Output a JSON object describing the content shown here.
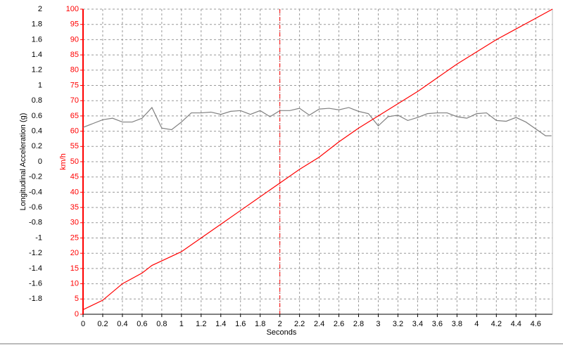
{
  "chart_data": {
    "type": "line",
    "x_label": "Seconds",
    "y_label": "Longitudinal Acceleration (g)",
    "y2_label": "km/h",
    "xlim": [
      0,
      4.77
    ],
    "xticks": [
      0,
      0.2,
      0.4,
      0.6,
      0.8,
      1,
      1.2,
      1.4,
      1.6,
      1.8,
      2,
      2.2,
      2.4,
      2.6,
      2.8,
      3,
      3.2,
      3.4,
      3.6,
      3.8,
      4,
      4.2,
      4.4,
      4.6
    ],
    "ylim": [
      -2,
      2
    ],
    "yticks": [
      -1.8,
      -1.6,
      -1.4,
      -1.2,
      -1,
      -0.8,
      -0.6,
      -0.4,
      -0.2,
      0,
      0.2,
      0.4,
      0.6,
      0.8,
      1,
      1.2,
      1.4,
      1.6,
      1.8,
      2
    ],
    "y2lim": [
      0,
      100
    ],
    "y2ticks": [
      0,
      5,
      10,
      15,
      20,
      25,
      30,
      35,
      40,
      45,
      50,
      55,
      60,
      65,
      70,
      75,
      80,
      85,
      90,
      95,
      100
    ],
    "grid": true,
    "cursor_x": 2,
    "series": [
      {
        "color": "#808080",
        "axis": "y",
        "x": [
          0,
          0.1,
          0.2,
          0.3,
          0.4,
          0.5,
          0.6,
          0.7,
          0.8,
          0.9,
          1,
          1.1,
          1.2,
          1.3,
          1.4,
          1.5,
          1.6,
          1.7,
          1.8,
          1.9,
          2,
          2.1,
          2.2,
          2.3,
          2.4,
          2.5,
          2.6,
          2.7,
          2.8,
          2.9,
          3,
          3.1,
          3.2,
          3.3,
          3.4,
          3.5,
          3.6,
          3.7,
          3.8,
          3.9,
          4,
          4.1,
          4.2,
          4.3,
          4.4,
          4.5,
          4.6,
          4.7,
          4.76
        ],
        "values": [
          0.45,
          0.5,
          0.55,
          0.57,
          0.52,
          0.52,
          0.57,
          0.71,
          0.44,
          0.42,
          0.52,
          0.64,
          0.64,
          0.65,
          0.62,
          0.66,
          0.67,
          0.62,
          0.67,
          0.59,
          0.67,
          0.67,
          0.7,
          0.61,
          0.69,
          0.7,
          0.68,
          0.71,
          0.66,
          0.63,
          0.47,
          0.59,
          0.61,
          0.54,
          0.58,
          0.63,
          0.64,
          0.64,
          0.59,
          0.57,
          0.63,
          0.64,
          0.54,
          0.53,
          0.58,
          0.52,
          0.43,
          0.34,
          0.34
        ]
      },
      {
        "color": "#ff0000",
        "axis": "y2",
        "x": [
          0,
          0.2,
          0.4,
          0.6,
          0.7,
          0.8,
          1,
          1.2,
          1.4,
          1.6,
          1.8,
          2,
          2.2,
          2.4,
          2.6,
          2.8,
          3,
          3.2,
          3.4,
          3.6,
          3.8,
          4,
          4.2,
          4.4,
          4.6,
          4.77
        ],
        "values": [
          1.5,
          4.6,
          10,
          13.5,
          16,
          17.5,
          20.5,
          25,
          29.5,
          34,
          38.5,
          43,
          47.5,
          51.5,
          56.5,
          61,
          65,
          69,
          73,
          77.5,
          82,
          86,
          90,
          93.5,
          97,
          100
        ]
      }
    ]
  }
}
